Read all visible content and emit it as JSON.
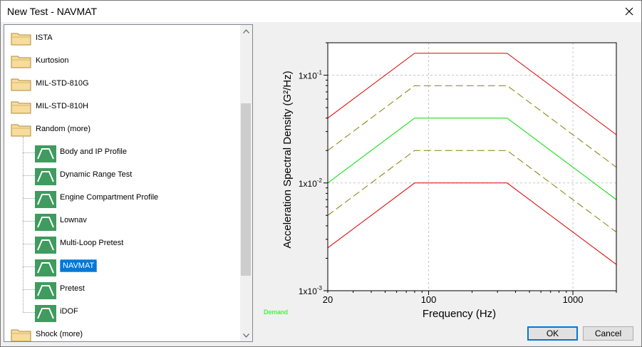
{
  "window": {
    "title": "New Test - NAVMAT"
  },
  "tree": {
    "folders_top": [
      {
        "label": "ISTA"
      },
      {
        "label": "Kurtosion"
      },
      {
        "label": "MIL-STD-810G"
      },
      {
        "label": "MIL-STD-810H"
      },
      {
        "label": "Random (more)"
      }
    ],
    "random_children": [
      {
        "label": "Body and IP Profile"
      },
      {
        "label": "Dynamic Range Test"
      },
      {
        "label": "Engine Compartment Profile"
      },
      {
        "label": "Lownav"
      },
      {
        "label": "Multi-Loop Pretest"
      },
      {
        "label": "NAVMAT",
        "selected": true
      },
      {
        "label": "Pretest"
      },
      {
        "label": "iDOF"
      }
    ],
    "folders_bottom": [
      {
        "label": "Shock (more)"
      }
    ]
  },
  "chart_data": {
    "type": "line",
    "xlabel": "Frequency (Hz)",
    "ylabel": "Acceleration Spectral Density (G²/Hz)",
    "xscale": "log",
    "yscale": "log",
    "xlim": [
      20,
      2000
    ],
    "ylim": [
      0.001,
      0.2
    ],
    "x_tick_labels": [
      "20",
      "100",
      "1000"
    ],
    "y_tick_labels": [
      {
        "base": "1x10",
        "exp": "-1"
      },
      {
        "base": "1x10",
        "exp": "-2"
      },
      {
        "base": "1x10",
        "exp": "-3"
      }
    ],
    "grid": true,
    "legend": [
      "Demand"
    ],
    "series": [
      {
        "name": "Demand",
        "color": "#00dd00",
        "dash": "solid",
        "x": [
          20,
          80,
          350,
          2000
        ],
        "y": [
          0.01,
          0.04,
          0.04,
          0.007
        ]
      },
      {
        "color": "#808000",
        "dash": "dashed",
        "x": [
          20,
          80,
          350,
          2000
        ],
        "y": [
          0.02,
          0.08,
          0.08,
          0.014
        ]
      },
      {
        "color": "#808000",
        "dash": "dashed",
        "x": [
          20,
          80,
          350,
          2000
        ],
        "y": [
          0.005,
          0.02,
          0.02,
          0.0035
        ]
      },
      {
        "color": "#dd0000",
        "dash": "solid",
        "x": [
          20,
          80,
          350,
          2000
        ],
        "y": [
          0.04,
          0.16,
          0.16,
          0.028
        ]
      },
      {
        "color": "#dd0000",
        "dash": "solid",
        "x": [
          20,
          80,
          350,
          2000
        ],
        "y": [
          0.0025,
          0.01,
          0.01,
          0.00175
        ]
      }
    ]
  },
  "buttons": {
    "ok": "OK",
    "cancel": "Cancel"
  },
  "icons": {
    "close": "close-icon",
    "folder": "folder-icon",
    "profile": "profile-icon"
  }
}
